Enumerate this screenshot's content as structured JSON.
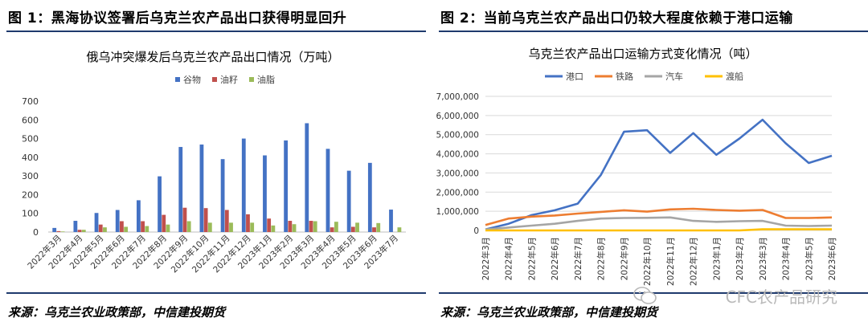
{
  "left": {
    "figure_title": "图 1：黑海协议签署后乌克兰农产品出口获得明显回升",
    "source": "来源：乌克兰农业政策部，中信建投期货"
  },
  "right": {
    "figure_title": "图 2：当前乌克兰农产品出口仍较大程度依赖于港口运输",
    "source": "来源：乌克兰农业政策部，中信建投期货"
  },
  "watermark": "CFC农产品研究",
  "chart_data": [
    {
      "type": "bar",
      "title": "俄乌冲突爆发后乌克兰农产品出口情况（万吨）",
      "categories": [
        "2022年3月",
        "2022年4月",
        "2022年5月",
        "2022年6月",
        "2022年7月",
        "2022年8月",
        "2022年9月",
        "2022年10月",
        "2022年11月",
        "2022年12月",
        "2023年1月",
        "2023年2月",
        "2023年3月",
        "2023年4月",
        "2023年5月",
        "2023年6月",
        "2023年7月"
      ],
      "ylim": [
        0,
        700
      ],
      "yticks": [
        "0",
        "100",
        "200",
        "300",
        "400",
        "500",
        "600",
        "700"
      ],
      "series": [
        {
          "name": "谷物",
          "color": "#4472c4",
          "values": [
            22,
            60,
            102,
            118,
            170,
            298,
            455,
            468,
            390,
            500,
            410,
            490,
            582,
            445,
            328,
            370,
            120
          ]
        },
        {
          "name": "油籽",
          "color": "#c0504d",
          "values": [
            5,
            12,
            40,
            58,
            58,
            92,
            130,
            128,
            118,
            95,
            72,
            60,
            60,
            25,
            28,
            25,
            0
          ]
        },
        {
          "name": "油脂",
          "color": "#9bbb59",
          "values": [
            3,
            12,
            25,
            28,
            32,
            40,
            58,
            50,
            50,
            50,
            35,
            42,
            58,
            55,
            50,
            48,
            25
          ]
        }
      ],
      "legend": "top"
    },
    {
      "type": "line",
      "title": "乌克兰农产品出口运输方式变化情况（吨）",
      "categories": [
        "2022年3月",
        "2022年4月",
        "2022年5月",
        "2022年6月",
        "2022年7月",
        "2022年8月",
        "2022年9月",
        "2022年10月",
        "2022年11月",
        "2022年12月",
        "2023年1月",
        "2023年2月",
        "2023年3月",
        "2023年4月",
        "2023年5月",
        "2023年6月"
      ],
      "ylim": [
        0,
        7000000
      ],
      "yticks": [
        "0",
        "1,000,000",
        "2,000,000",
        "3,000,000",
        "4,000,000",
        "5,000,000",
        "6,000,000",
        "7,000,000"
      ],
      "series": [
        {
          "name": "港口",
          "color": "#4472c4",
          "values": [
            50000,
            350000,
            800000,
            1050000,
            1400000,
            2900000,
            5150000,
            5230000,
            4050000,
            5080000,
            3950000,
            4800000,
            5780000,
            4550000,
            3520000,
            3900000
          ]
        },
        {
          "name": "铁路",
          "color": "#ed7d31",
          "values": [
            280000,
            620000,
            720000,
            780000,
            880000,
            970000,
            1050000,
            980000,
            1100000,
            1130000,
            1070000,
            1030000,
            1070000,
            650000,
            650000,
            680000
          ]
        },
        {
          "name": "汽车",
          "color": "#a5a5a5",
          "values": [
            50000,
            150000,
            250000,
            350000,
            500000,
            620000,
            650000,
            660000,
            680000,
            500000,
            450000,
            480000,
            500000,
            250000,
            230000,
            250000
          ]
        },
        {
          "name": "渡船",
          "color": "#ffc000",
          "values": [
            0,
            0,
            0,
            0,
            0,
            0,
            0,
            0,
            0,
            0,
            0,
            0,
            60000,
            60000,
            60000,
            60000
          ]
        }
      ],
      "legend": "top"
    }
  ]
}
